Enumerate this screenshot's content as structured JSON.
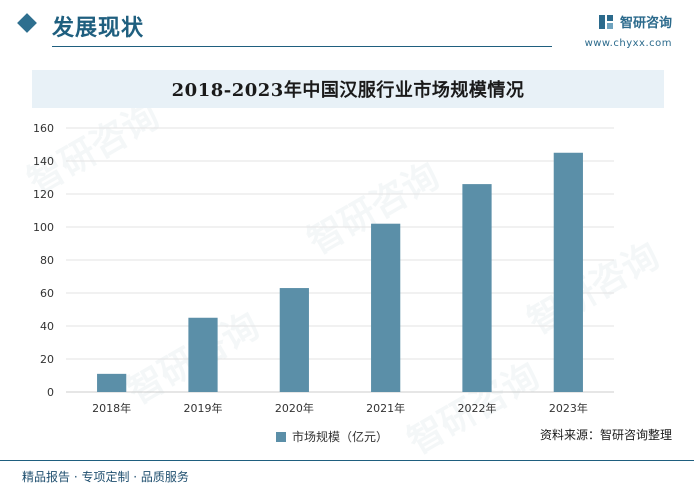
{
  "header": {
    "section_title": "发展现状",
    "brand_name": "智研咨询",
    "brand_url": "www.chyxx.com"
  },
  "chart_data": {
    "type": "bar",
    "title": "2018-2023年中国汉服行业市场规模情况",
    "categories": [
      "2018年",
      "2019年",
      "2020年",
      "2021年",
      "2022年",
      "2023年"
    ],
    "series": [
      {
        "name": "市场规模（亿元）",
        "values": [
          11,
          45,
          63,
          102,
          126,
          145
        ],
        "color": "#5b8fa8"
      }
    ],
    "ylim": [
      0,
      160
    ],
    "yticks": [
      0,
      20,
      40,
      60,
      80,
      100,
      120,
      140,
      160
    ],
    "grid": true,
    "legend": "bottom-center"
  },
  "footer": {
    "left": "精品报告 · 专项定制 · 品质服务",
    "source": "资料来源：智研咨询整理"
  }
}
